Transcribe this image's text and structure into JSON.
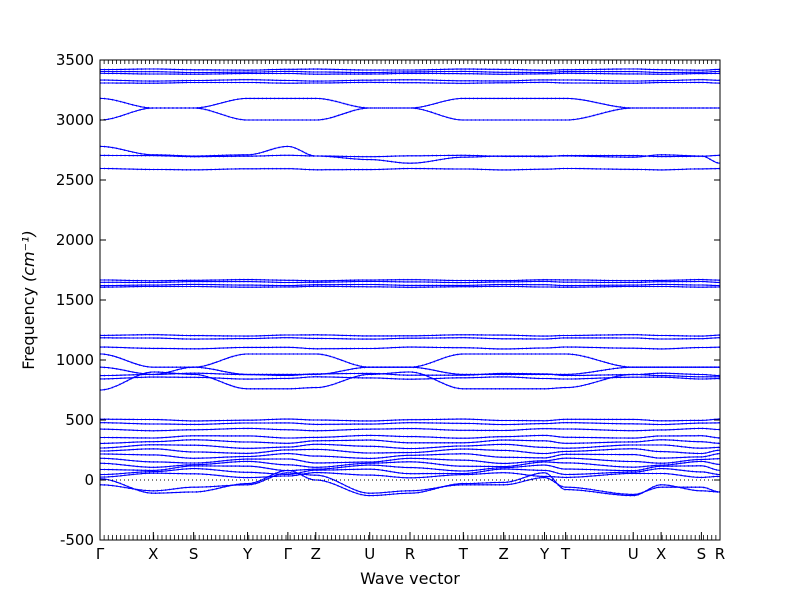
{
  "chart_data": {
    "type": "line",
    "xlabel": "Wave vector",
    "ylabel": "Frequency ",
    "ylabel_unit": "(cm⁻¹)",
    "ylim": [
      -500,
      3500
    ],
    "yticks": [
      -500,
      0,
      500,
      1000,
      1500,
      2000,
      2500,
      3000,
      3500
    ],
    "grid": false,
    "line_color": "#0000ff",
    "zero_reference": 0,
    "kpath": {
      "labels": [
        "Γ",
        "X",
        "S",
        "Y",
        "Γ",
        "Z",
        "U",
        "R",
        "T",
        "Z",
        "Y",
        "T",
        "U",
        "X",
        "S",
        "R"
      ],
      "positions": [
        0,
        8.6,
        15.1,
        23.8,
        30.3,
        34.8,
        43.5,
        50.0,
        58.6,
        65.1,
        71.7,
        75.1,
        86.0,
        90.5,
        97.0,
        100.0
      ]
    },
    "series_branches": [
      {
        "base": 3420,
        "wobble": 5
      },
      {
        "base": 3400,
        "wobble": 5
      },
      {
        "base": 3385,
        "wobble": 4
      },
      {
        "base": 3330,
        "wobble": 6
      },
      {
        "base": 3310,
        "wobble": 4
      },
      {
        "base": 3180,
        "wobble": 0
      },
      {
        "base": 3000,
        "wobble": 0
      },
      {
        "base": 2780,
        "wobble": 0
      },
      {
        "base": 2700,
        "wobble": 6
      },
      {
        "base": 2590,
        "wobble": 6
      },
      {
        "base": 1665,
        "wobble": 5
      },
      {
        "base": 1650,
        "wobble": 5
      },
      {
        "base": 1625,
        "wobble": 5
      },
      {
        "base": 1610,
        "wobble": 4
      },
      {
        "base": 1205,
        "wobble": 6
      },
      {
        "base": 1180,
        "wobble": 6
      },
      {
        "base": 1100,
        "wobble": 8
      },
      {
        "base": 1050,
        "wobble": 0
      },
      {
        "base": 940,
        "wobble": 0
      },
      {
        "base": 880,
        "wobble": 10
      },
      {
        "base": 850,
        "wobble": 10
      },
      {
        "base": 750,
        "wobble": 0
      },
      {
        "base": 500,
        "wobble": 8
      },
      {
        "base": 470,
        "wobble": 8
      },
      {
        "base": 420,
        "wobble": 10
      },
      {
        "base": 360,
        "wobble": 12
      },
      {
        "base": 320,
        "wobble": 15
      },
      {
        "base": 280,
        "wobble": 18
      },
      {
        "base": 240,
        "wobble": 20
      },
      {
        "base": 200,
        "wobble": 20
      },
      {
        "base": 160,
        "wobble": 22
      },
      {
        "base": 130,
        "wobble": 25
      },
      {
        "base": 100,
        "wobble": 25
      },
      {
        "base": 70,
        "wobble": 25
      },
      {
        "base": 40,
        "wobble": 22
      },
      {
        "base": -40,
        "wobble": 45
      },
      {
        "base": -100,
        "wobble": 35
      }
    ]
  }
}
